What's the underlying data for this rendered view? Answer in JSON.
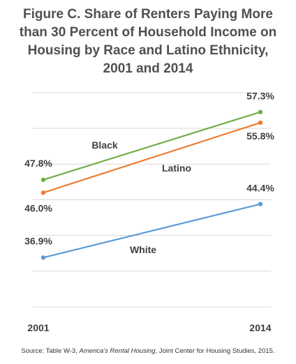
{
  "title_lines": [
    "Figure C. Share of Renters Paying More",
    "than 30 Percent of Household Income on",
    "Housing by Race and Latino Ethnicity,",
    "2001 and 2014"
  ],
  "source": {
    "prefix": "Source: Table W-3, ",
    "italic": "America's Rental Housing",
    "suffix": ", Joint Center for Housing Studies, 2015."
  },
  "colors": {
    "Black": "#70ad47",
    "Latino": "#ed7d31",
    "White": "#5b9bd5",
    "grid": "#d9d9d9"
  },
  "chart_data": {
    "type": "line",
    "x": [
      "2001",
      "2014"
    ],
    "series": [
      {
        "name": "Black",
        "values": [
          47.8,
          57.3
        ],
        "value_labels": [
          "47.8%",
          "57.3%"
        ]
      },
      {
        "name": "Latino",
        "values": [
          46.0,
          55.8
        ],
        "value_labels": [
          "46.0%",
          "55.8%"
        ]
      },
      {
        "name": "White",
        "values": [
          36.9,
          44.4
        ],
        "value_labels": [
          "36.9%",
          "44.4%"
        ]
      }
    ],
    "ylim": [
      30,
      60
    ],
    "grid": true,
    "legend": "inline labels"
  }
}
